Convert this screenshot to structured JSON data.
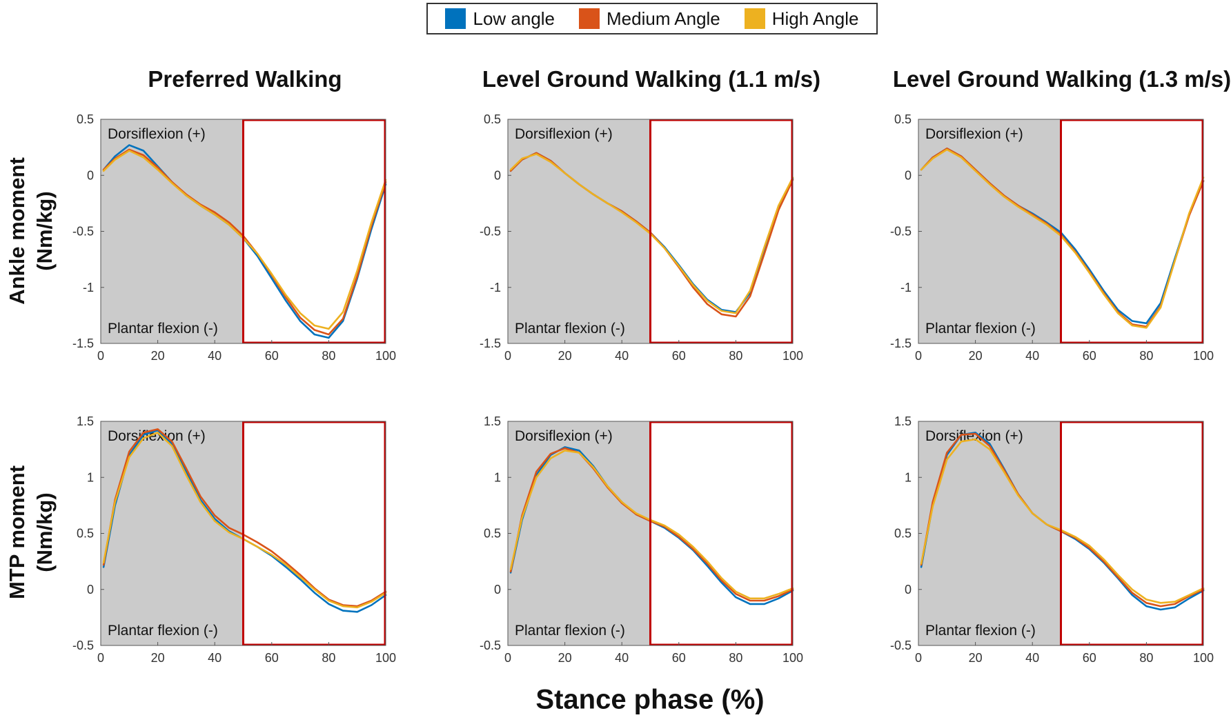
{
  "legend": {
    "entries": [
      {
        "name": "Low angle",
        "color": "#0072BD"
      },
      {
        "name": "Medium Angle",
        "color": "#D95319"
      },
      {
        "name": "High Angle",
        "color": "#EDB120"
      }
    ]
  },
  "column_titles": [
    "Preferred Walking",
    "Level Ground Walking (1.1 m/s)",
    "Level Ground Walking (1.3 m/s)"
  ],
  "row_labels": [
    {
      "line1": "Ankle moment",
      "line2": "(Nm/kg)"
    },
    {
      "line1": "MTP moment",
      "line2": "(Nm/kg)"
    }
  ],
  "xlabel": "Stance phase (%)",
  "annotations": {
    "positive": "Dorsiflexion (+)",
    "negative": "Plantar flexion (-)"
  },
  "colors": {
    "shaded": "#cbcbcb",
    "highlight_box": "#c00000"
  },
  "chart_data": [
    {
      "type": "line",
      "panel": "ankle-preferred",
      "title": "Preferred Walking",
      "ylabel": "Ankle moment (Nm/kg)",
      "xlim": [
        0,
        100
      ],
      "ylim": [
        -1.5,
        0.5
      ],
      "xticks": [
        0,
        20,
        40,
        60,
        80,
        100
      ],
      "yticks": [
        0.5,
        0,
        -0.5,
        -1,
        -1.5
      ],
      "ytick_labels": [
        "0.5",
        "0",
        "-0.5",
        "-1",
        "-1.5"
      ],
      "shaded_x": [
        0,
        50
      ],
      "box_x": [
        50,
        100
      ],
      "x": [
        1,
        5,
        10,
        15,
        20,
        25,
        30,
        35,
        40,
        45,
        50,
        55,
        60,
        65,
        70,
        75,
        80,
        85,
        90,
        95,
        100
      ],
      "series": [
        {
          "name": "Low angle",
          "values": [
            0.05,
            0.17,
            0.27,
            0.22,
            0.08,
            -0.06,
            -0.18,
            -0.27,
            -0.35,
            -0.44,
            -0.56,
            -0.72,
            -0.92,
            -1.12,
            -1.3,
            -1.42,
            -1.45,
            -1.3,
            -0.92,
            -0.48,
            -0.08
          ]
        },
        {
          "name": "Medium Angle",
          "values": [
            0.05,
            0.15,
            0.23,
            0.18,
            0.07,
            -0.06,
            -0.17,
            -0.26,
            -0.33,
            -0.42,
            -0.54,
            -0.7,
            -0.89,
            -1.09,
            -1.27,
            -1.38,
            -1.42,
            -1.28,
            -0.9,
            -0.45,
            -0.06
          ]
        },
        {
          "name": "High Angle",
          "values": [
            0.04,
            0.14,
            0.22,
            0.16,
            0.05,
            -0.07,
            -0.18,
            -0.27,
            -0.35,
            -0.44,
            -0.56,
            -0.7,
            -0.88,
            -1.07,
            -1.23,
            -1.34,
            -1.37,
            -1.22,
            -0.85,
            -0.42,
            -0.04
          ]
        }
      ]
    },
    {
      "type": "line",
      "panel": "ankle-1.1",
      "title": "Level Ground Walking (1.1 m/s)",
      "ylabel": "Ankle moment (Nm/kg)",
      "xlim": [
        0,
        100
      ],
      "ylim": [
        -1.5,
        0.5
      ],
      "xticks": [
        0,
        20,
        40,
        60,
        80,
        100
      ],
      "yticks": [
        0.5,
        0,
        -0.5,
        -1,
        -1.5
      ],
      "ytick_labels": [
        "0.5",
        "0",
        "-0.5",
        "-1",
        "-1.5"
      ],
      "shaded_x": [
        0,
        50
      ],
      "box_x": [
        50,
        100
      ],
      "x": [
        1,
        5,
        10,
        15,
        20,
        25,
        30,
        35,
        40,
        45,
        50,
        55,
        60,
        65,
        70,
        75,
        80,
        85,
        90,
        95,
        100
      ],
      "series": [
        {
          "name": "Low angle",
          "values": [
            0.04,
            0.14,
            0.2,
            0.13,
            0.02,
            -0.08,
            -0.17,
            -0.25,
            -0.32,
            -0.41,
            -0.51,
            -0.64,
            -0.8,
            -0.97,
            -1.11,
            -1.2,
            -1.22,
            -1.05,
            -0.68,
            -0.3,
            -0.03
          ]
        },
        {
          "name": "Medium Angle",
          "values": [
            0.04,
            0.14,
            0.2,
            0.13,
            0.02,
            -0.08,
            -0.17,
            -0.25,
            -0.32,
            -0.41,
            -0.51,
            -0.65,
            -0.82,
            -1.0,
            -1.15,
            -1.24,
            -1.26,
            -1.08,
            -0.7,
            -0.31,
            -0.04
          ]
        },
        {
          "name": "High Angle",
          "values": [
            0.05,
            0.15,
            0.19,
            0.12,
            0.02,
            -0.08,
            -0.17,
            -0.25,
            -0.33,
            -0.42,
            -0.52,
            -0.65,
            -0.81,
            -0.98,
            -1.12,
            -1.21,
            -1.23,
            -1.03,
            -0.64,
            -0.27,
            -0.02
          ]
        }
      ]
    },
    {
      "type": "line",
      "panel": "ankle-1.3",
      "title": "Level Ground Walking (1.3 m/s)",
      "ylabel": "Ankle moment (Nm/kg)",
      "xlim": [
        0,
        100
      ],
      "ylim": [
        -1.5,
        0.5
      ],
      "xticks": [
        0,
        20,
        40,
        60,
        80,
        100
      ],
      "yticks": [
        0.5,
        0,
        -0.5,
        -1,
        -1.5
      ],
      "ytick_labels": [
        "0.5",
        "0",
        "-0.5",
        "-1",
        "-1.5"
      ],
      "shaded_x": [
        0,
        50
      ],
      "box_x": [
        50,
        100
      ],
      "x": [
        1,
        5,
        10,
        15,
        20,
        25,
        30,
        35,
        40,
        45,
        50,
        55,
        60,
        65,
        70,
        75,
        80,
        85,
        90,
        95,
        100
      ],
      "series": [
        {
          "name": "Low angle",
          "values": [
            0.05,
            0.16,
            0.24,
            0.17,
            0.05,
            -0.07,
            -0.18,
            -0.27,
            -0.34,
            -0.42,
            -0.51,
            -0.66,
            -0.84,
            -1.03,
            -1.2,
            -1.3,
            -1.32,
            -1.14,
            -0.74,
            -0.35,
            -0.05
          ]
        },
        {
          "name": "Medium Angle",
          "values": [
            0.05,
            0.16,
            0.24,
            0.17,
            0.05,
            -0.07,
            -0.18,
            -0.27,
            -0.35,
            -0.43,
            -0.53,
            -0.68,
            -0.86,
            -1.05,
            -1.22,
            -1.33,
            -1.35,
            -1.17,
            -0.76,
            -0.36,
            -0.05
          ]
        },
        {
          "name": "High Angle",
          "values": [
            0.05,
            0.15,
            0.23,
            0.16,
            0.04,
            -0.08,
            -0.19,
            -0.28,
            -0.36,
            -0.44,
            -0.54,
            -0.69,
            -0.87,
            -1.06,
            -1.23,
            -1.34,
            -1.36,
            -1.18,
            -0.76,
            -0.34,
            -0.02
          ]
        }
      ]
    },
    {
      "type": "line",
      "panel": "mtp-preferred",
      "title": "Preferred Walking",
      "ylabel": "MTP moment (Nm/kg)",
      "xlim": [
        0,
        100
      ],
      "ylim": [
        -0.5,
        1.5
      ],
      "xticks": [
        0,
        20,
        40,
        60,
        80,
        100
      ],
      "yticks": [
        1.5,
        1,
        0.5,
        0,
        -0.5
      ],
      "ytick_labels": [
        "1.5",
        "1",
        "0.5",
        "0",
        "-0.5"
      ],
      "shaded_x": [
        0,
        50
      ],
      "box_x": [
        50,
        100
      ],
      "x": [
        1,
        5,
        10,
        15,
        20,
        25,
        30,
        35,
        40,
        45,
        50,
        55,
        60,
        65,
        70,
        75,
        80,
        85,
        90,
        95,
        100
      ],
      "series": [
        {
          "name": "Low angle",
          "values": [
            0.2,
            0.75,
            1.2,
            1.38,
            1.42,
            1.3,
            1.05,
            0.8,
            0.63,
            0.52,
            0.45,
            0.38,
            0.3,
            0.2,
            0.09,
            -0.03,
            -0.13,
            -0.19,
            -0.2,
            -0.14,
            -0.05
          ]
        },
        {
          "name": "Medium Angle",
          "values": [
            0.22,
            0.8,
            1.23,
            1.4,
            1.43,
            1.32,
            1.08,
            0.83,
            0.66,
            0.55,
            0.49,
            0.42,
            0.34,
            0.24,
            0.13,
            0.01,
            -0.09,
            -0.14,
            -0.15,
            -0.1,
            -0.02
          ]
        },
        {
          "name": "High Angle",
          "values": [
            0.24,
            0.78,
            1.18,
            1.35,
            1.4,
            1.28,
            1.02,
            0.78,
            0.61,
            0.51,
            0.45,
            0.38,
            0.31,
            0.22,
            0.11,
            0.0,
            -0.1,
            -0.15,
            -0.16,
            -0.11,
            -0.03
          ]
        }
      ]
    },
    {
      "type": "line",
      "panel": "mtp-1.1",
      "title": "Level Ground Walking (1.1 m/s)",
      "ylabel": "MTP moment (Nm/kg)",
      "xlim": [
        0,
        100
      ],
      "ylim": [
        -0.5,
        1.5
      ],
      "xticks": [
        0,
        20,
        40,
        60,
        80,
        100
      ],
      "yticks": [
        1.5,
        1,
        0.5,
        0,
        -0.5
      ],
      "ytick_labels": [
        "1.5",
        "1",
        "0.5",
        "0",
        "-0.5"
      ],
      "shaded_x": [
        0,
        50
      ],
      "box_x": [
        50,
        100
      ],
      "x": [
        1,
        5,
        10,
        15,
        20,
        25,
        30,
        35,
        40,
        45,
        50,
        55,
        60,
        65,
        70,
        75,
        80,
        85,
        90,
        95,
        100
      ],
      "series": [
        {
          "name": "Low angle",
          "values": [
            0.15,
            0.62,
            1.02,
            1.2,
            1.27,
            1.24,
            1.1,
            0.92,
            0.78,
            0.67,
            0.61,
            0.55,
            0.46,
            0.35,
            0.21,
            0.06,
            -0.07,
            -0.13,
            -0.13,
            -0.08,
            -0.01
          ]
        },
        {
          "name": "Medium Angle",
          "values": [
            0.16,
            0.66,
            1.05,
            1.21,
            1.26,
            1.22,
            1.08,
            0.91,
            0.77,
            0.67,
            0.61,
            0.56,
            0.47,
            0.36,
            0.23,
            0.08,
            -0.04,
            -0.1,
            -0.1,
            -0.06,
            0.0
          ]
        },
        {
          "name": "High Angle",
          "values": [
            0.18,
            0.64,
            1.0,
            1.17,
            1.24,
            1.22,
            1.09,
            0.92,
            0.78,
            0.68,
            0.62,
            0.57,
            0.49,
            0.38,
            0.25,
            0.1,
            -0.02,
            -0.08,
            -0.08,
            -0.04,
            0.01
          ]
        }
      ]
    },
    {
      "type": "line",
      "panel": "mtp-1.3",
      "title": "Level Ground Walking (1.3 m/s)",
      "ylabel": "MTP moment (Nm/kg)",
      "xlim": [
        0,
        100
      ],
      "ylim": [
        -0.5,
        1.5
      ],
      "xticks": [
        0,
        20,
        40,
        60,
        80,
        100
      ],
      "yticks": [
        1.5,
        1,
        0.5,
        0,
        -0.5
      ],
      "ytick_labels": [
        "1.5",
        "1",
        "0.5",
        "0",
        "-0.5"
      ],
      "shaded_x": [
        0,
        50
      ],
      "box_x": [
        50,
        100
      ],
      "x": [
        1,
        5,
        10,
        15,
        20,
        25,
        30,
        35,
        40,
        45,
        50,
        55,
        60,
        65,
        70,
        75,
        80,
        85,
        90,
        95,
        100
      ],
      "series": [
        {
          "name": "Low angle",
          "values": [
            0.2,
            0.75,
            1.2,
            1.38,
            1.4,
            1.3,
            1.08,
            0.85,
            0.68,
            0.58,
            0.52,
            0.45,
            0.36,
            0.24,
            0.1,
            -0.05,
            -0.15,
            -0.18,
            -0.16,
            -0.08,
            -0.01
          ]
        },
        {
          "name": "Medium Angle",
          "values": [
            0.22,
            0.78,
            1.22,
            1.38,
            1.39,
            1.28,
            1.07,
            0.85,
            0.68,
            0.58,
            0.52,
            0.46,
            0.37,
            0.25,
            0.11,
            -0.03,
            -0.12,
            -0.15,
            -0.13,
            -0.06,
            0.0
          ]
        },
        {
          "name": "High Angle",
          "values": [
            0.23,
            0.74,
            1.16,
            1.32,
            1.34,
            1.25,
            1.05,
            0.84,
            0.68,
            0.58,
            0.53,
            0.47,
            0.39,
            0.27,
            0.13,
            0.0,
            -0.09,
            -0.12,
            -0.11,
            -0.05,
            0.01
          ]
        }
      ]
    }
  ]
}
